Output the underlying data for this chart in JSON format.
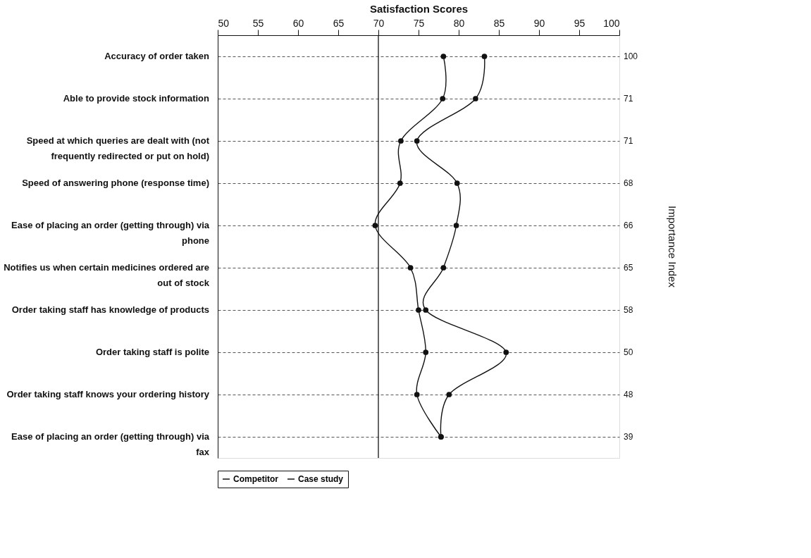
{
  "chart_data": {
    "type": "line",
    "orientation": "horizontal",
    "xlabel": "Satisfaction Scores",
    "y2label": "Importance Index",
    "categories": [
      "Accuracy of order taken",
      "Able to provide stock information",
      "Speed at which queries are dealt with (not frequently redirected or put on hold)",
      "Speed of answering phone (response time)",
      "Ease of placing an order (getting through) via phone",
      "Notifies us when certain medicines ordered are out of stock",
      "Order taking staff has knowledge of products",
      "Order taking staff is polite",
      "Order taking staff knows your ordering history",
      "Ease of placing an order (getting through) via fax"
    ],
    "y2_categories": [
      "100",
      "71",
      "71",
      "68",
      "66",
      "65",
      "58",
      "50",
      "48",
      "39"
    ],
    "series": [
      {
        "name": "Competitor",
        "color": "#111111",
        "values": [
          78.1,
          78.0,
          72.8,
          72.7,
          69.6,
          74.0,
          75.0,
          75.9,
          74.8,
          77.8
        ]
      },
      {
        "name": "Case study",
        "color": "#111111",
        "values": [
          83.2,
          82.1,
          74.8,
          79.8,
          79.7,
          78.1,
          75.9,
          85.9,
          78.8,
          77.8
        ]
      }
    ],
    "xlim": [
      50,
      100
    ],
    "xticks": [
      50,
      55,
      60,
      65,
      70,
      75,
      80,
      85,
      90,
      95,
      100
    ],
    "ref_lines": [
      {
        "axis": "x",
        "value": 70,
        "color": "#111111"
      }
    ],
    "grid": "y",
    "legend": "bottom",
    "marker": "circle",
    "line_style": "solid"
  }
}
